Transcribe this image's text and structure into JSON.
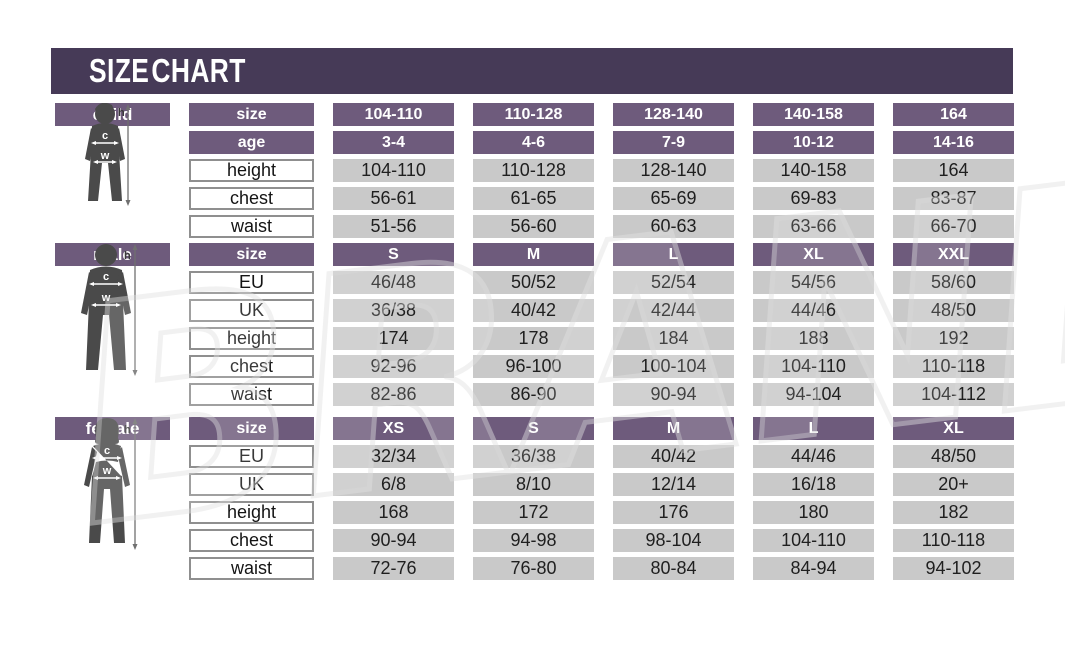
{
  "title": "SIZE CHART",
  "watermark_text": "BRAND",
  "colors": {
    "banner_bg": "#463a57",
    "header_purple": "#6e5b7c",
    "cell_gray": "#c9c9c9",
    "label_border": "#8f8f8f",
    "text_dark": "#1f1f1f",
    "figure_gray": "#4a4a4a"
  },
  "measure_labels": {
    "height_arrow": "h",
    "chest_arrow": "c",
    "waist_arrow": "w"
  },
  "chart_data": [
    {
      "type": "table",
      "section": "child",
      "figure_icon": "child-silhouette-icon",
      "rows": [
        {
          "label": "size",
          "style": "header",
          "values": [
            "104-110",
            "110-128",
            "128-140",
            "140-158",
            "164"
          ]
        },
        {
          "label": "age",
          "style": "header",
          "values": [
            "3-4",
            "4-6",
            "7-9",
            "10-12",
            "14-16"
          ]
        },
        {
          "label": "height",
          "style": "data",
          "values": [
            "104-110",
            "110-128",
            "128-140",
            "140-158",
            "164"
          ]
        },
        {
          "label": "chest",
          "style": "data",
          "values": [
            "56-61",
            "61-65",
            "65-69",
            "69-83",
            "83-87"
          ]
        },
        {
          "label": "waist",
          "style": "data",
          "values": [
            "51-56",
            "56-60",
            "60-63",
            "63-66",
            "66-70"
          ]
        }
      ]
    },
    {
      "type": "table",
      "section": "male",
      "figure_icon": "male-silhouette-icon",
      "rows": [
        {
          "label": "size",
          "style": "header",
          "values": [
            "S",
            "M",
            "L",
            "XL",
            "XXL"
          ]
        },
        {
          "label": "EU",
          "style": "data",
          "values": [
            "46/48",
            "50/52",
            "52/54",
            "54/56",
            "58/60"
          ]
        },
        {
          "label": "UK",
          "style": "data",
          "values": [
            "36/38",
            "40/42",
            "42/44",
            "44/46",
            "48/50"
          ]
        },
        {
          "label": "height",
          "style": "data",
          "values": [
            "174",
            "178",
            "184",
            "188",
            "192"
          ]
        },
        {
          "label": "chest",
          "style": "data",
          "values": [
            "92-96",
            "96-100",
            "100-104",
            "104-110",
            "110-118"
          ]
        },
        {
          "label": "waist",
          "style": "data",
          "values": [
            "82-86",
            "86-90",
            "90-94",
            "94-104",
            "104-112"
          ]
        }
      ]
    },
    {
      "type": "table",
      "section": "female",
      "figure_icon": "female-silhouette-icon",
      "rows": [
        {
          "label": "size",
          "style": "header",
          "values": [
            "XS",
            "S",
            "M",
            "L",
            "XL"
          ]
        },
        {
          "label": "EU",
          "style": "data",
          "values": [
            "32/34",
            "36/38",
            "40/42",
            "44/46",
            "48/50"
          ]
        },
        {
          "label": "UK",
          "style": "data",
          "values": [
            "6/8",
            "8/10",
            "12/14",
            "16/18",
            "20+"
          ]
        },
        {
          "label": "height",
          "style": "data",
          "values": [
            "168",
            "172",
            "176",
            "180",
            "182"
          ]
        },
        {
          "label": "chest",
          "style": "data",
          "values": [
            "90-94",
            "94-98",
            "98-104",
            "104-110",
            "110-118"
          ]
        },
        {
          "label": "waist",
          "style": "data",
          "values": [
            "72-76",
            "76-80",
            "80-84",
            "84-94",
            "94-102"
          ]
        }
      ]
    }
  ]
}
